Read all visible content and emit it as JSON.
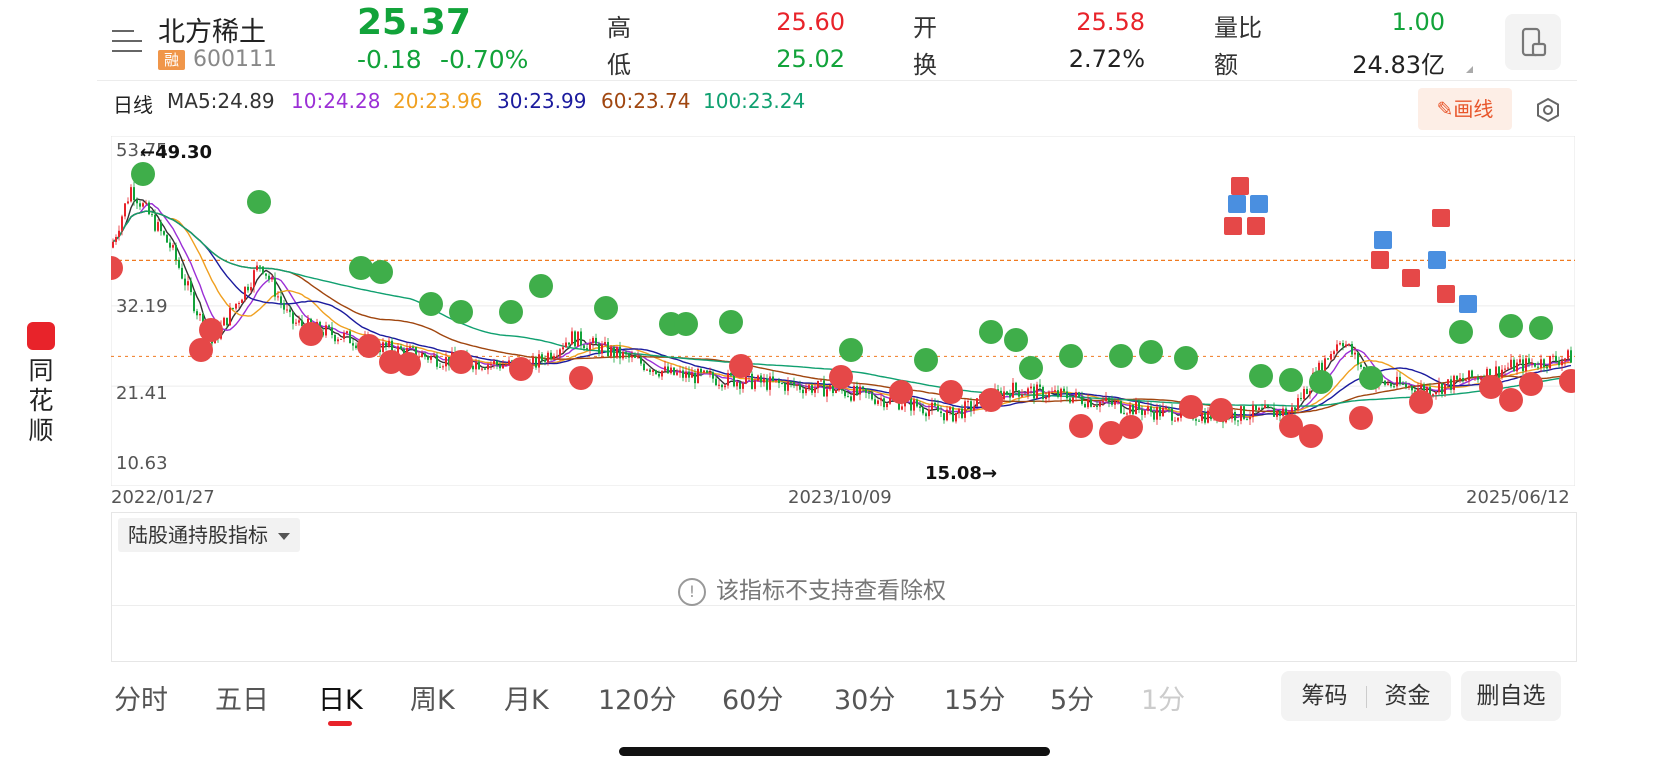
{
  "header": {
    "stock_name": "北方稀土",
    "badge": "融",
    "code": "600111",
    "price": "25.37",
    "change": "-0.18",
    "change_pct": "-0.70%",
    "quotes": [
      {
        "label": "高",
        "value": "25.60",
        "color": "#e8232a"
      },
      {
        "label": "低",
        "value": "25.02",
        "color": "#12a33a"
      },
      {
        "label": "开",
        "value": "25.58",
        "color": "#e8232a"
      },
      {
        "label": "换",
        "value": "2.72%",
        "color": "#222222"
      },
      {
        "label": "量比",
        "value": "1.00",
        "color": "#12a33a"
      },
      {
        "label": "额",
        "value": "24.83亿",
        "color": "#222222"
      }
    ]
  },
  "ma_bar": {
    "period_label": "日线",
    "items": [
      {
        "text": "MA5:24.89",
        "color": "#333333"
      },
      {
        "text": "10:24.28",
        "color": "#9b2fd6"
      },
      {
        "text": "20:23.96",
        "color": "#f0a020"
      },
      {
        "text": "30:23.99",
        "color": "#1b1b9e"
      },
      {
        "text": "60:23.74",
        "color": "#a0460f"
      },
      {
        "text": "100:23.24",
        "color": "#10a070"
      }
    ],
    "draw_button": "画线"
  },
  "chart_data": {
    "type": "candlestick",
    "y_ticks": [
      "53.75",
      "32.19",
      "21.41",
      "10.63"
    ],
    "x_ticks": [
      "2022/01/27",
      "2023/10/09",
      "2025/06/12"
    ],
    "high_label": "49.30",
    "low_label": "15.08",
    "colors": {
      "up": "#e8232a",
      "down": "#12a33a",
      "ref_line": "#f07a20"
    }
  },
  "indicator": {
    "selector": "陆股通持股指标",
    "message": "该指标不支持查看除权"
  },
  "periods": [
    {
      "label": "分时",
      "active": false
    },
    {
      "label": "五日",
      "active": false
    },
    {
      "label": "日K",
      "active": true
    },
    {
      "label": "周K",
      "active": false
    },
    {
      "label": "月K",
      "active": false
    },
    {
      "label": "120分",
      "active": false
    },
    {
      "label": "60分",
      "active": false
    },
    {
      "label": "30分",
      "active": false
    },
    {
      "label": "15分",
      "active": false
    },
    {
      "label": "5分",
      "active": false
    },
    {
      "label": "1分",
      "active": false
    }
  ],
  "actions": {
    "chips": "筹码",
    "funds": "资金",
    "remove": "删自选"
  },
  "side": {
    "app_name": "同花顺"
  }
}
